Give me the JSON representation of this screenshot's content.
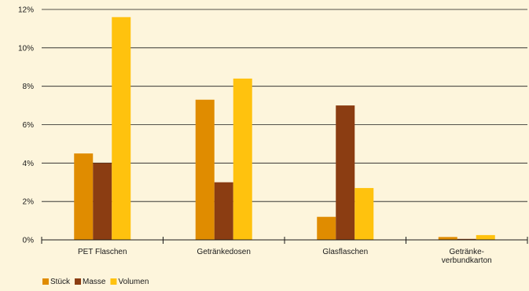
{
  "chart_data": {
    "type": "bar",
    "categories": [
      [
        "PET Flaschen"
      ],
      [
        "Getränkedosen"
      ],
      [
        "Glasflaschen"
      ],
      [
        "Getränke-",
        "verbundkarton"
      ]
    ],
    "series": [
      {
        "name": "Stück",
        "color": "#e08c00",
        "values": [
          4.5,
          7.3,
          1.2,
          0.15
        ]
      },
      {
        "name": "Masse",
        "color": "#8b3d12",
        "values": [
          4.0,
          3.0,
          7.0,
          0.05
        ]
      },
      {
        "name": "Volumen",
        "color": "#ffc20e",
        "values": [
          11.6,
          8.4,
          2.7,
          0.25
        ]
      }
    ],
    "yticks": [
      "0%",
      "2%",
      "4%",
      "6%",
      "8%",
      "10%",
      "12%"
    ],
    "ylim": [
      0,
      12
    ],
    "y_unit": "%",
    "grid": true,
    "legend_position": "bottom-left",
    "title": "",
    "xlabel": "",
    "ylabel": ""
  }
}
